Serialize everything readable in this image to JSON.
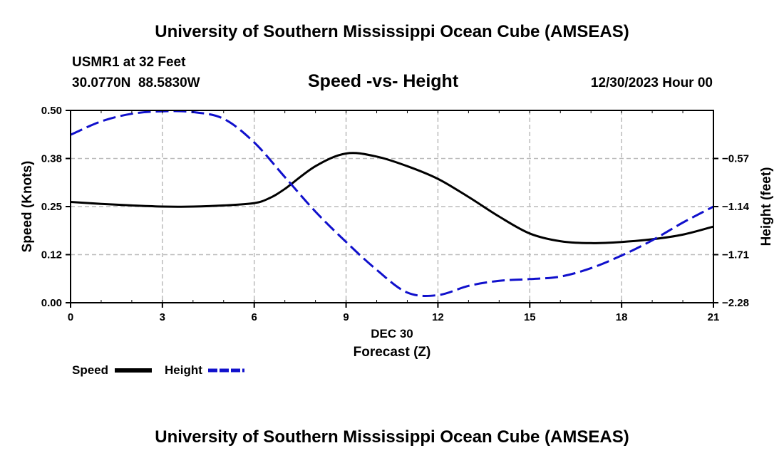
{
  "top_title": "University of Southern Mississippi Ocean Cube (AMSEAS)",
  "bottom_title": "University of Southern Mississippi Ocean Cube (AMSEAS)",
  "station": "USMR1 at 32 Feet",
  "coords": "30.0770N  88.5830W",
  "datetime": "12/30/2023 Hour 00",
  "colors": {
    "speed": "#000000",
    "height": "#1010cc",
    "grid": "#bbbbbb"
  },
  "chart_data": {
    "type": "line",
    "title": "Speed -vs- Height",
    "xlabel": "Forecast (Z)",
    "xlabel_date": "DEC 30",
    "ylabel": "Speed (Knots)",
    "y2label": "Height (feet)",
    "xlim": [
      0,
      21
    ],
    "ylim": [
      0,
      0.5
    ],
    "y2lim": [
      -2.28,
      0.0
    ],
    "x_ticks": [
      0,
      3,
      6,
      9,
      12,
      15,
      18,
      21
    ],
    "x_tick_labels": [
      "0",
      "3",
      "6",
      "9",
      "12",
      "15",
      "18",
      "21"
    ],
    "y_ticks": [
      0.0,
      0.125,
      0.25,
      0.375,
      0.5
    ],
    "y_tick_labels": [
      "0.00",
      "0.12",
      "0.25",
      "0.38",
      "0.50"
    ],
    "y2_ticks": [
      -2.28,
      -1.71,
      -1.14,
      -0.57
    ],
    "y2_tick_labels": [
      "-2.28",
      "-1.71",
      "-1.14",
      "-0.57"
    ],
    "grid": true,
    "series": [
      {
        "name": "Speed",
        "axis": "left",
        "style": "solid",
        "x": [
          0,
          1,
          2,
          3,
          4,
          5,
          6,
          6.5,
          7,
          8,
          9,
          10,
          11,
          12,
          13,
          14,
          15,
          16,
          17,
          18,
          19,
          20,
          21
        ],
        "values": [
          0.262,
          0.257,
          0.253,
          0.25,
          0.25,
          0.253,
          0.259,
          0.272,
          0.296,
          0.355,
          0.388,
          0.38,
          0.355,
          0.322,
          0.275,
          0.224,
          0.18,
          0.16,
          0.155,
          0.158,
          0.165,
          0.177,
          0.198
        ]
      },
      {
        "name": "Height",
        "axis": "right",
        "style": "dashed",
        "x": [
          0,
          1,
          2,
          3,
          4,
          5,
          6,
          7,
          8,
          9,
          10,
          11,
          12,
          13,
          14,
          15,
          16,
          17,
          18,
          19,
          20,
          21
        ],
        "values": [
          -0.29,
          -0.13,
          -0.04,
          -0.01,
          -0.02,
          -0.1,
          -0.38,
          -0.79,
          -1.2,
          -1.56,
          -1.89,
          -2.16,
          -2.19,
          -2.08,
          -2.02,
          -2.0,
          -1.97,
          -1.87,
          -1.72,
          -1.54,
          -1.33,
          -1.14
        ]
      }
    ],
    "legend_position": "bottom-left"
  }
}
